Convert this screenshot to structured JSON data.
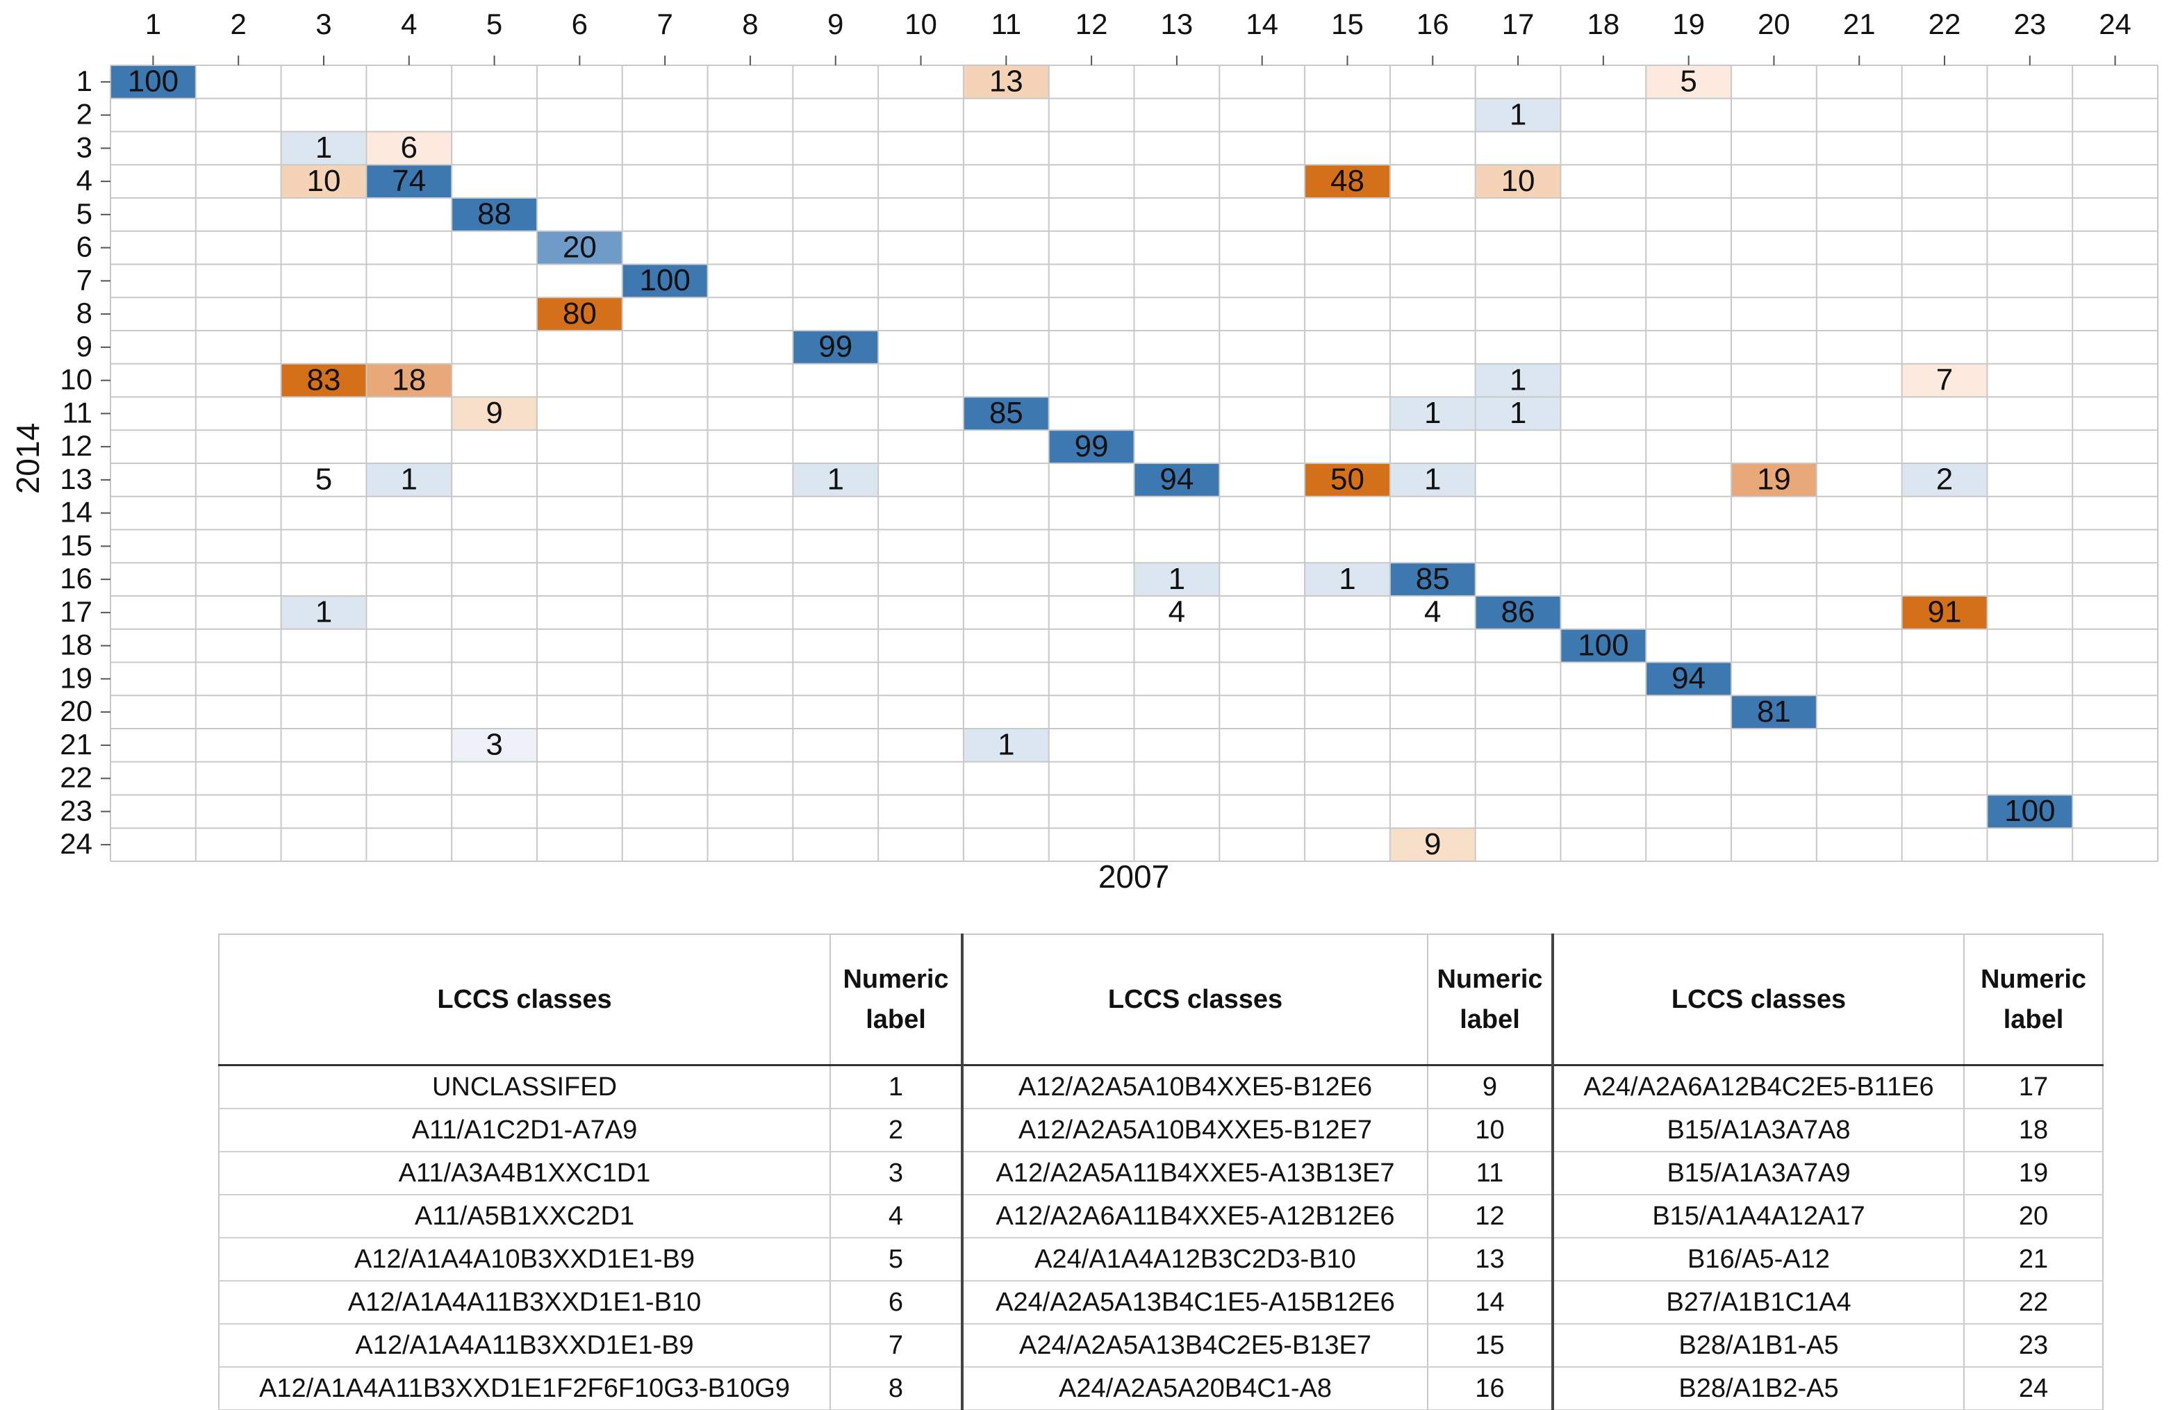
{
  "chart_data": {
    "type": "heatmap",
    "x_categories": [
      1,
      2,
      3,
      4,
      5,
      6,
      7,
      8,
      9,
      10,
      11,
      12,
      13,
      14,
      15,
      16,
      17,
      18,
      19,
      20,
      21,
      22,
      23,
      24
    ],
    "y_categories": [
      1,
      2,
      3,
      4,
      5,
      6,
      7,
      8,
      9,
      10,
      11,
      12,
      13,
      14,
      15,
      16,
      17,
      18,
      19,
      20,
      21,
      22,
      23,
      24
    ],
    "xlabel": "2007",
    "ylabel": "2014",
    "grid": true,
    "cells": [
      {
        "x": 1,
        "y": 1,
        "value": 100,
        "color": "#3d78b0"
      },
      {
        "x": 11,
        "y": 1,
        "value": 13,
        "color": "#f4d3b6"
      },
      {
        "x": 19,
        "y": 1,
        "value": 5,
        "color": "#fbeadd"
      },
      {
        "x": 17,
        "y": 2,
        "value": 1,
        "color": "#dce6f1"
      },
      {
        "x": 3,
        "y": 3,
        "value": 1,
        "color": "#dce6f1"
      },
      {
        "x": 4,
        "y": 3,
        "value": 6,
        "color": "#fbeadd"
      },
      {
        "x": 3,
        "y": 4,
        "value": 10,
        "color": "#f4d3b6"
      },
      {
        "x": 4,
        "y": 4,
        "value": 74,
        "color": "#3d78b0"
      },
      {
        "x": 15,
        "y": 4,
        "value": 48,
        "color": "#d46f1a"
      },
      {
        "x": 17,
        "y": 4,
        "value": 10,
        "color": "#f4d3b6"
      },
      {
        "x": 5,
        "y": 5,
        "value": 88,
        "color": "#3d78b0"
      },
      {
        "x": 6,
        "y": 6,
        "value": 20,
        "color": "#6e9bc8"
      },
      {
        "x": 7,
        "y": 7,
        "value": 100,
        "color": "#3d78b0"
      },
      {
        "x": 6,
        "y": 8,
        "value": 80,
        "color": "#d46f1a"
      },
      {
        "x": 9,
        "y": 9,
        "value": 99,
        "color": "#3d78b0"
      },
      {
        "x": 3,
        "y": 10,
        "value": 83,
        "color": "#d46f1a"
      },
      {
        "x": 4,
        "y": 10,
        "value": 18,
        "color": "#e8a877"
      },
      {
        "x": 17,
        "y": 10,
        "value": 1,
        "color": "#dce6f1"
      },
      {
        "x": 22,
        "y": 10,
        "value": 7,
        "color": "#fbeadd"
      },
      {
        "x": 5,
        "y": 11,
        "value": 9,
        "color": "#f7dfc9"
      },
      {
        "x": 11,
        "y": 11,
        "value": 85,
        "color": "#3d78b0"
      },
      {
        "x": 16,
        "y": 11,
        "value": 1,
        "color": "#dce6f1"
      },
      {
        "x": 17,
        "y": 11,
        "value": 1,
        "color": "#dce6f1"
      },
      {
        "x": 12,
        "y": 12,
        "value": 99,
        "color": "#3d78b0"
      },
      {
        "x": 3,
        "y": 13,
        "value": 5,
        "color": "#ffffff"
      },
      {
        "x": 4,
        "y": 13,
        "value": 1,
        "color": "#dce6f1"
      },
      {
        "x": 9,
        "y": 13,
        "value": 1,
        "color": "#dce6f1"
      },
      {
        "x": 13,
        "y": 13,
        "value": 94,
        "color": "#3d78b0"
      },
      {
        "x": 15,
        "y": 13,
        "value": 50,
        "color": "#d46f1a"
      },
      {
        "x": 16,
        "y": 13,
        "value": 1,
        "color": "#dce6f1"
      },
      {
        "x": 20,
        "y": 13,
        "value": 19,
        "color": "#e8a877"
      },
      {
        "x": 22,
        "y": 13,
        "value": 2,
        "color": "#dce6f1"
      },
      {
        "x": 13,
        "y": 16,
        "value": 1,
        "color": "#dce6f1"
      },
      {
        "x": 15,
        "y": 16,
        "value": 1,
        "color": "#dce6f1"
      },
      {
        "x": 16,
        "y": 16,
        "value": 85,
        "color": "#3d78b0"
      },
      {
        "x": 3,
        "y": 17,
        "value": 1,
        "color": "#dce6f1"
      },
      {
        "x": 13,
        "y": 17,
        "value": 4,
        "color": "#ffffff"
      },
      {
        "x": 16,
        "y": 17,
        "value": 4,
        "color": "#ffffff"
      },
      {
        "x": 17,
        "y": 17,
        "value": 86,
        "color": "#3d78b0"
      },
      {
        "x": 22,
        "y": 17,
        "value": 91,
        "color": "#d46f1a"
      },
      {
        "x": 18,
        "y": 18,
        "value": 100,
        "color": "#3d78b0"
      },
      {
        "x": 19,
        "y": 19,
        "value": 94,
        "color": "#3d78b0"
      },
      {
        "x": 20,
        "y": 20,
        "value": 81,
        "color": "#3d78b0"
      },
      {
        "x": 5,
        "y": 21,
        "value": 3,
        "color": "#eef2f8"
      },
      {
        "x": 11,
        "y": 21,
        "value": 1,
        "color": "#dce6f1"
      },
      {
        "x": 23,
        "y": 23,
        "value": 100,
        "color": "#3d78b0"
      },
      {
        "x": 16,
        "y": 24,
        "value": 9,
        "color": "#f7dfc9"
      }
    ]
  },
  "table": {
    "header": [
      "LCCS classes",
      "Numeric label",
      "LCCS classes",
      "Numeric label",
      "LCCS classes",
      "Numeric label"
    ],
    "rows": [
      [
        "UNCLASSIFED",
        1,
        "A12/A2A5A10B4XXE5-B12E6",
        9,
        "A24/A2A6A12B4C2E5-B11E6",
        17
      ],
      [
        "A11/A1C2D1-A7A9",
        2,
        "A12/A2A5A10B4XXE5-B12E7",
        10,
        "B15/A1A3A7A8",
        18
      ],
      [
        "A11/A3A4B1XXC1D1",
        3,
        "A12/A2A5A11B4XXE5-A13B13E7",
        11,
        "B15/A1A3A7A9",
        19
      ],
      [
        "A11/A5B1XXC2D1",
        4,
        "A12/A2A6A11B4XXE5-A12B12E6",
        12,
        "B15/A1A4A12A17",
        20
      ],
      [
        "A12/A1A4A10B3XXD1E1-B9",
        5,
        "A24/A1A4A12B3C2D3-B10",
        13,
        "B16/A5-A12",
        21
      ],
      [
        "A12/A1A4A11B3XXD1E1-B10",
        6,
        "A24/A2A5A13B4C1E5-A15B12E6",
        14,
        "B27/A1B1C1A4",
        22
      ],
      [
        "A12/A1A4A11B3XXD1E1-B9",
        7,
        "A24/A2A5A13B4C2E5-B13E7",
        15,
        "B28/A1B1-A5",
        23
      ],
      [
        "A12/A1A4A11B3XXD1E1F2F6F10G3-B10G9",
        8,
        "A24/A2A5A20B4C1-A8",
        16,
        "B28/A1B2-A5",
        24
      ]
    ]
  }
}
